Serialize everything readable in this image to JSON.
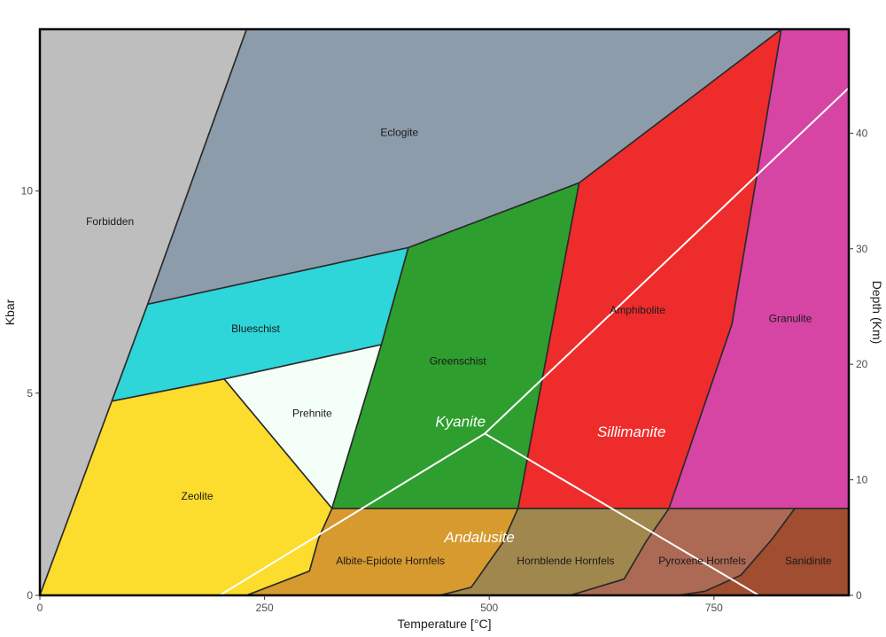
{
  "chart_data": {
    "type": "area",
    "xlabel": "Temperature [°C]",
    "ylabel": "Kbar",
    "y2label": "Depth (Km)",
    "xlim": [
      0,
      900
    ],
    "ylim": [
      0,
      14
    ],
    "y2lim": [
      0,
      49
    ],
    "x_ticks": [
      0,
      250,
      500,
      750
    ],
    "y_ticks": [
      0,
      5,
      10
    ],
    "y2_ticks": [
      0,
      10,
      20,
      30,
      40
    ],
    "grid": false,
    "legend": "none",
    "regions": [
      {
        "name": "Forbidden",
        "color": "#bebebe",
        "label_at": [
          78,
          9.25
        ],
        "points": [
          [
            0,
            0
          ],
          [
            0,
            14
          ],
          [
            230,
            14
          ],
          [
            120,
            7.2
          ],
          [
            80,
            4.8
          ]
        ]
      },
      {
        "name": "Eclogite",
        "color": "#8c9caa",
        "label_at": [
          400,
          11.45
        ],
        "points": [
          [
            230,
            14
          ],
          [
            825,
            14
          ],
          [
            600,
            10.2
          ],
          [
            410,
            8.6
          ],
          [
            120,
            7.2
          ]
        ]
      },
      {
        "name": "Blueschist",
        "color": "#2ed5d9",
        "label_at": [
          240,
          6.6
        ],
        "points": [
          [
            120,
            7.2
          ],
          [
            410,
            8.6
          ],
          [
            380,
            6.2
          ],
          [
            205,
            5.35
          ],
          [
            80,
            4.8
          ]
        ]
      },
      {
        "name": "Prehnite",
        "color": "#f4fff7",
        "label_at": [
          303,
          4.5
        ],
        "points": [
          [
            205,
            5.35
          ],
          [
            380,
            6.2
          ],
          [
            325,
            2.15
          ]
        ]
      },
      {
        "name": "Zeolite",
        "color": "#fcdc2d",
        "label_at": [
          175,
          2.45
        ],
        "points": [
          [
            0,
            0
          ],
          [
            80,
            4.8
          ],
          [
            205,
            5.35
          ],
          [
            325,
            2.15
          ],
          [
            310,
            1.4
          ],
          [
            300,
            0.6
          ],
          [
            230,
            0
          ]
        ]
      },
      {
        "name": "Greenschist",
        "color": "#2e9e2e",
        "label_at": [
          465,
          5.8
        ],
        "points": [
          [
            410,
            8.6
          ],
          [
            600,
            10.2
          ],
          [
            532,
            2.15
          ],
          [
            325,
            2.15
          ],
          [
            380,
            6.2
          ]
        ]
      },
      {
        "name": "Amphibolite",
        "color": "#ee2c2c",
        "label_at": [
          665,
          7.05
        ],
        "points": [
          [
            600,
            10.2
          ],
          [
            825,
            14
          ],
          [
            770,
            6.7
          ],
          [
            700,
            2.15
          ],
          [
            532,
            2.15
          ]
        ]
      },
      {
        "name": "Granulite",
        "color": "#d645a4",
        "label_at": [
          835,
          6.85
        ],
        "points": [
          [
            825,
            14
          ],
          [
            900,
            14
          ],
          [
            900,
            2.15
          ],
          [
            700,
            2.15
          ],
          [
            770,
            6.7
          ]
        ]
      },
      {
        "name": "Albite-Epidote Hornfels",
        "color": "#d69a2e",
        "label_at": [
          390,
          0.85
        ],
        "points": [
          [
            325,
            2.15
          ],
          [
            532,
            2.15
          ],
          [
            515,
            1.3
          ],
          [
            480,
            0.2
          ],
          [
            445,
            0
          ],
          [
            230,
            0
          ],
          [
            300,
            0.6
          ],
          [
            310,
            1.4
          ]
        ]
      },
      {
        "name": "Hornblende Hornfels",
        "color": "#a0874d",
        "label_at": [
          585,
          0.85
        ],
        "points": [
          [
            532,
            2.15
          ],
          [
            700,
            2.15
          ],
          [
            675,
            1.35
          ],
          [
            650,
            0.4
          ],
          [
            590,
            0
          ],
          [
            445,
            0
          ],
          [
            480,
            0.2
          ],
          [
            515,
            1.3
          ]
        ]
      },
      {
        "name": "Pyroxene Hornfels",
        "color": "#ac6a55",
        "label_at": [
          737,
          0.85
        ],
        "points": [
          [
            700,
            2.15
          ],
          [
            840,
            2.15
          ],
          [
            815,
            1.4
          ],
          [
            780,
            0.5
          ],
          [
            740,
            0.1
          ],
          [
            710,
            0
          ],
          [
            590,
            0
          ],
          [
            650,
            0.4
          ],
          [
            675,
            1.35
          ]
        ]
      },
      {
        "name": "Sanidinite",
        "color": "#a04d30",
        "label_at": [
          855,
          0.85
        ],
        "points": [
          [
            840,
            2.15
          ],
          [
            900,
            2.15
          ],
          [
            900,
            0
          ],
          [
            710,
            0
          ],
          [
            740,
            0.1
          ],
          [
            780,
            0.5
          ],
          [
            815,
            1.4
          ]
        ]
      }
    ],
    "white_lines": [
      {
        "name": "kyanite-sillimanite-andalusite boundary",
        "points": [
          [
            200,
            0
          ],
          [
            495,
            4
          ],
          [
            800,
            0
          ]
        ]
      },
      {
        "name": "geotherm",
        "points": [
          [
            495,
            4
          ],
          [
            900,
            12.55
          ]
        ]
      }
    ],
    "mineral_labels": [
      {
        "text": "Kyanite",
        "at": [
          440,
          4.3
        ]
      },
      {
        "text": "Sillimanite",
        "at": [
          620,
          4.05
        ]
      },
      {
        "text": "Andalusite",
        "at": [
          450,
          1.45
        ]
      }
    ]
  }
}
